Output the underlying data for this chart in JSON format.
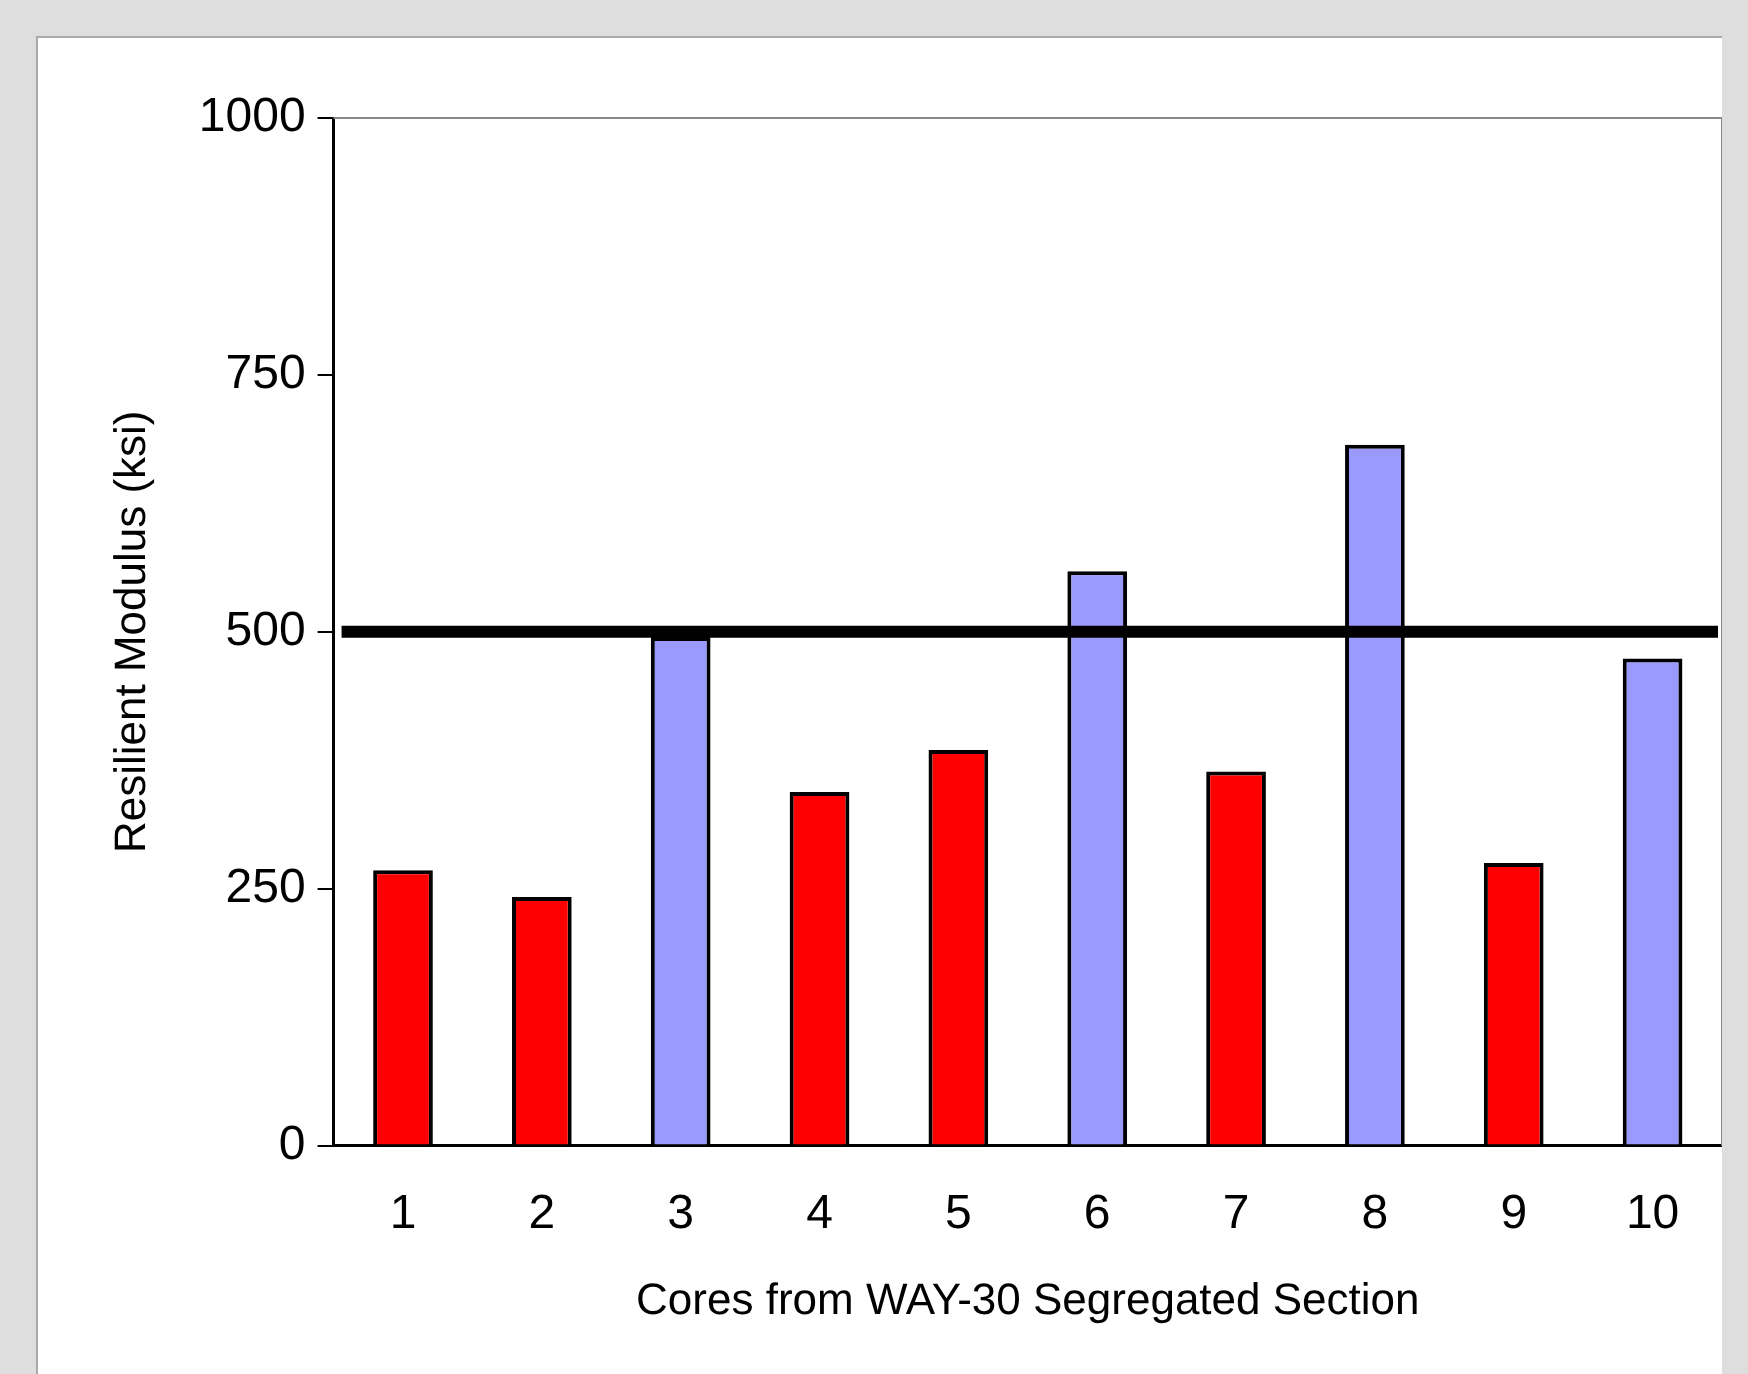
{
  "chart_data": {
    "type": "bar",
    "xlabel": "Cores from WAY-30 Segregated Section",
    "ylabel": "Resilient Modulus (ksi)",
    "categories": [
      "1",
      "2",
      "3",
      "4",
      "5",
      "6",
      "7",
      "8",
      "9",
      "10"
    ],
    "values": [
      268,
      242,
      495,
      344,
      385,
      559,
      364,
      682,
      275,
      474
    ],
    "colors": [
      "#ff0000",
      "#ff0000",
      "#9999ff",
      "#ff0000",
      "#ff0000",
      "#9999ff",
      "#ff0000",
      "#9999ff",
      "#ff0000",
      "#9999ff"
    ],
    "ylim": [
      0,
      1000
    ],
    "yticks": [
      0,
      250,
      500,
      750,
      1000
    ],
    "grid": false,
    "legend": false,
    "ref_lines": [
      {
        "axis": "y",
        "value": 500,
        "color": "#000000"
      }
    ]
  }
}
